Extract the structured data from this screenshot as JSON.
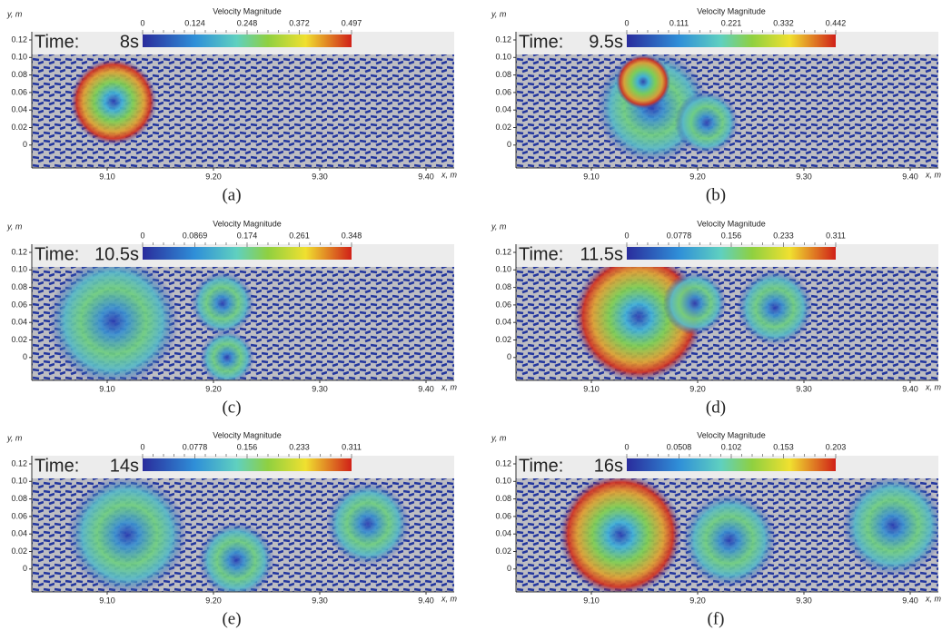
{
  "axes": {
    "y_label": "y, m",
    "x_label": "x, m",
    "y_ticks": [
      "0.12",
      "0.10",
      "0.08",
      "0.06",
      "0.04",
      "0.02",
      "0"
    ],
    "x_ticks": [
      "9.10",
      "9.20",
      "9.30",
      "9.40"
    ]
  },
  "colorbar_title": "Velocity Magnitude",
  "time_label": "Time:",
  "panels": [
    {
      "caption": "(a)",
      "time": "8s",
      "colorbar_ticks": [
        "0",
        "0.124",
        "0.248",
        "0.372",
        "0.497"
      ]
    },
    {
      "caption": "(b)",
      "time": "9.5s",
      "colorbar_ticks": [
        "0",
        "0.111",
        "0.221",
        "0.332",
        "0.442"
      ]
    },
    {
      "caption": "(c)",
      "time": "10.5s",
      "colorbar_ticks": [
        "0",
        "0.0869",
        "0.174",
        "0.261",
        "0.348"
      ]
    },
    {
      "caption": "(d)",
      "time": "11.5s",
      "colorbar_ticks": [
        "0",
        "0.0778",
        "0.156",
        "0.233",
        "0.311"
      ]
    },
    {
      "caption": "(e)",
      "time": "14s",
      "colorbar_ticks": [
        "0",
        "0.0778",
        "0.156",
        "0.233",
        "0.311"
      ]
    },
    {
      "caption": "(f)",
      "time": "16s",
      "colorbar_ticks": [
        "0",
        "0.0508",
        "0.102",
        "0.153",
        "0.203"
      ]
    }
  ]
}
